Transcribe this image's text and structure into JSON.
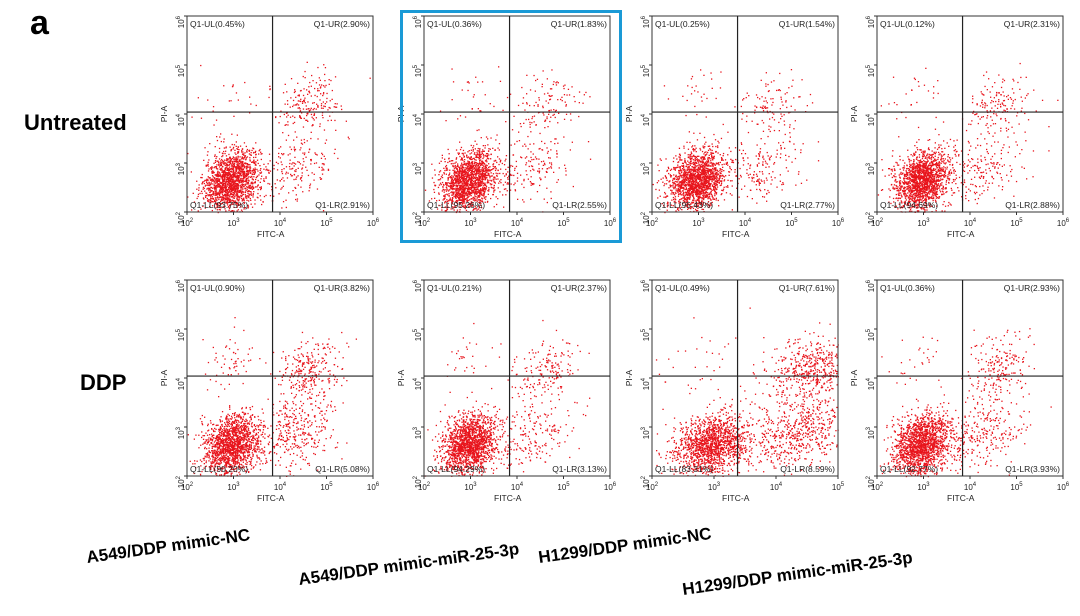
{
  "panel_letter": "a",
  "rows": [
    "Untreated",
    "DDP"
  ],
  "columns": [
    "A549/DDP mimic-NC",
    "A549/DDP mimic-miR-25-3p",
    "H1299/DDP mimic-NC",
    "H1299/DDP mimic-miR-25-3p"
  ],
  "highlight_color": "#1a9ad6",
  "dot_color": "#e8141c",
  "chart_data": [
    {
      "type": "scatter",
      "group": "Untreated",
      "sample": "A549/DDP mimic-NC",
      "xlabel": "FITC-A",
      "ylabel": "PI-A",
      "scale": "log",
      "xlim": [
        100,
        1000000
      ],
      "ylim": [
        100,
        1000000
      ],
      "quadrants": {
        "UL": "Q1-UL(0.45%)",
        "UR": "Q1-UR(2.90%)",
        "LL": "Q1-LL(93.75%)",
        "LR": "Q1-LR(2.91%)"
      }
    },
    {
      "type": "scatter",
      "group": "Untreated",
      "sample": "A549/DDP mimic-miR-25-3p",
      "xlabel": "FITC-A",
      "ylabel": "PI-A",
      "scale": "log",
      "xlim": [
        100,
        1000000
      ],
      "ylim": [
        100,
        1000000
      ],
      "highlighted": true,
      "quadrants": {
        "UL": "Q1-UL(0.36%)",
        "UR": "Q1-UR(1.83%)",
        "LL": "Q1-LL(95.26%)",
        "LR": "Q1-LR(2.55%)"
      }
    },
    {
      "type": "scatter",
      "group": "Untreated",
      "sample": "H1299/DDP mimic-NC",
      "xlabel": "FITC-A",
      "ylabel": "PI-A",
      "scale": "log",
      "xlim": [
        100,
        1000000
      ],
      "ylim": [
        100,
        1000000
      ],
      "quadrants": {
        "UL": "Q1-UL(0.25%)",
        "UR": "Q1-UR(1.54%)",
        "LL": "Q1-LL(95.43%)",
        "LR": "Q1-LR(2.77%)"
      }
    },
    {
      "type": "scatter",
      "group": "Untreated",
      "sample": "H1299/DDP mimic-miR-25-3p",
      "xlabel": "FITC-A",
      "ylabel": "PI-A",
      "scale": "log",
      "xlim": [
        100,
        1000000
      ],
      "ylim": [
        100,
        1000000
      ],
      "quadrants": {
        "UL": "Q1-UL(0.12%)",
        "UR": "Q1-UR(2.31%)",
        "LL": "Q1-LL(94.69%)",
        "LR": "Q1-LR(2.88%)"
      }
    },
    {
      "type": "scatter",
      "group": "DDP",
      "sample": "A549/DDP mimic-NC",
      "xlabel": "FITC-A",
      "ylabel": "PI-A",
      "scale": "log",
      "xlim": [
        100,
        1000000
      ],
      "ylim": [
        100,
        1000000
      ],
      "quadrants": {
        "UL": "Q1-UL(0.90%)",
        "UR": "Q1-UR(3.82%)",
        "LL": "Q1-LL(90.20%)",
        "LR": "Q1-LR(5.08%)"
      }
    },
    {
      "type": "scatter",
      "group": "DDP",
      "sample": "A549/DDP mimic-miR-25-3p",
      "xlabel": "FITC-A",
      "ylabel": "PI-A",
      "scale": "log",
      "xlim": [
        100,
        1000000
      ],
      "ylim": [
        100,
        1000000
      ],
      "quadrants": {
        "UL": "Q1-UL(0.21%)",
        "UR": "Q1-UR(2.37%)",
        "LL": "Q1-LL(94.29%)",
        "LR": "Q1-LR(3.13%)"
      }
    },
    {
      "type": "scatter",
      "group": "DDP",
      "sample": "H1299/DDP mimic-NC",
      "xlabel": "FITC-A",
      "ylabel": "PI-A",
      "scale": "log",
      "xlim": [
        100,
        100000
      ],
      "ylim": [
        100,
        1000000
      ],
      "quadrants": {
        "UL": "Q1-UL(0.49%)",
        "UR": "Q1-UR(7.61%)",
        "LL": "Q1-LL(83.31%)",
        "LR": "Q1-LR(8.59%)"
      }
    },
    {
      "type": "scatter",
      "group": "DDP",
      "sample": "H1299/DDP mimic-miR-25-3p",
      "xlabel": "FITC-A",
      "ylabel": "PI-A",
      "scale": "log",
      "xlim": [
        100,
        1000000
      ],
      "ylim": [
        100,
        1000000
      ],
      "quadrants": {
        "UL": "Q1-UL(0.36%)",
        "UR": "Q1-UR(2.93%)",
        "LL": "Q1-LL(92.77%)",
        "LR": "Q1-LR(3.93%)"
      }
    }
  ]
}
